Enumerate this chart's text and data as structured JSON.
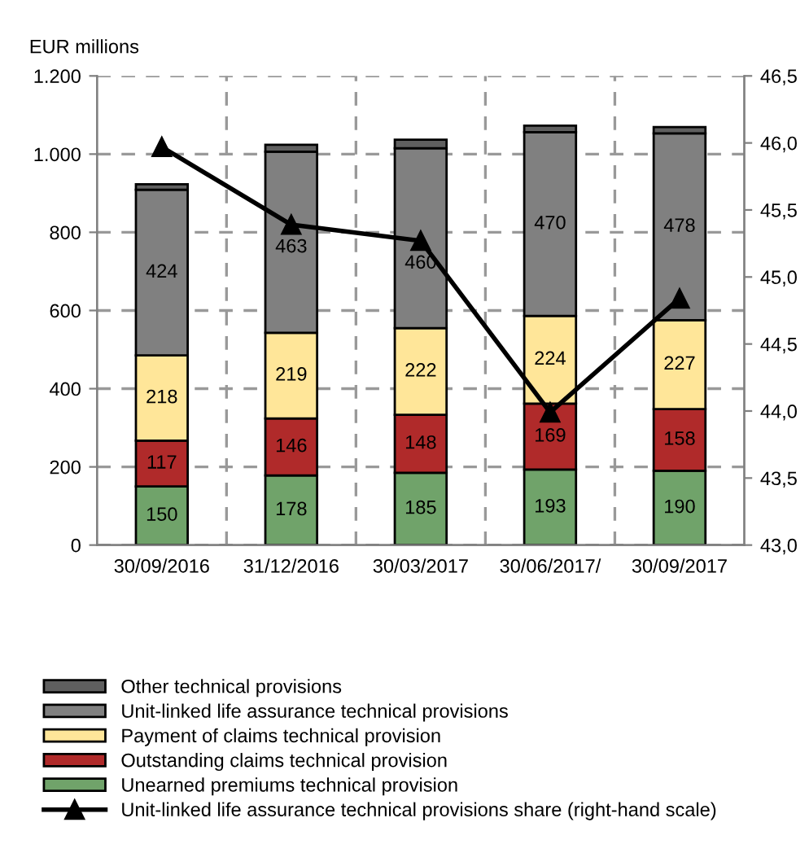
{
  "chart_data": {
    "type": "bar",
    "stacked": true,
    "ylabel": "EUR millions",
    "categories": [
      "30/09/2016",
      "31/12/2016",
      "30/03/2017",
      "30/06/2017/",
      "30/09/2017"
    ],
    "series": [
      {
        "name": "Unearned premiums technical provision",
        "color": "#70a36a",
        "values": [
          150,
          178,
          185,
          193,
          190
        ],
        "value_labels": [
          "150",
          "178",
          "185",
          "193",
          "190"
        ]
      },
      {
        "name": "Outstanding claims technical provision",
        "color": "#b02a2a",
        "values": [
          117,
          146,
          148,
          169,
          158
        ],
        "value_labels": [
          "117",
          "146",
          "148",
          "169",
          "158"
        ]
      },
      {
        "name": "Payment of claims technical provision",
        "color": "#ffe699",
        "values": [
          218,
          219,
          222,
          224,
          227
        ],
        "value_labels": [
          "218",
          "219",
          "222",
          "224",
          "227"
        ]
      },
      {
        "name": "Unit-linked life assurance technical provisions",
        "color": "#808080",
        "values": [
          424,
          463,
          460,
          470,
          478
        ],
        "value_labels": [
          "424",
          "463",
          "460",
          "470",
          "478"
        ]
      },
      {
        "name": "Other technical provisions",
        "color": "#5f5f5f",
        "values": [
          14,
          18,
          22,
          17,
          16
        ]
      },
      {
        "name": "Unit-linked life assurance technical provisions share (right-hand scale)",
        "type": "line",
        "axis": "y2",
        "color": "#000000",
        "marker": "triangle",
        "values": [
          45.97,
          45.39,
          45.27,
          43.99,
          44.84
        ]
      }
    ],
    "ylim": [
      0,
      1200
    ],
    "yticks": [
      0,
      200,
      400,
      600,
      800,
      {
        "value": 1000,
        "label": "1.000"
      },
      {
        "value": 1200,
        "label": "1.200"
      }
    ],
    "y2lim": [
      43.0,
      46.5
    ],
    "y2ticks": [
      {
        "value": 43.0,
        "label": "43,0"
      },
      {
        "value": 43.5,
        "label": "43,5"
      },
      {
        "value": 44.0,
        "label": "44,0"
      },
      {
        "value": 44.5,
        "label": "44,5"
      },
      {
        "value": 45.0,
        "label": "45,0"
      },
      {
        "value": 45.5,
        "label": "45,5"
      },
      {
        "value": 46.0,
        "label": "46,0"
      },
      {
        "value": 46.5,
        "label": "46,5"
      }
    ],
    "grid": true,
    "legend": "bottom"
  }
}
